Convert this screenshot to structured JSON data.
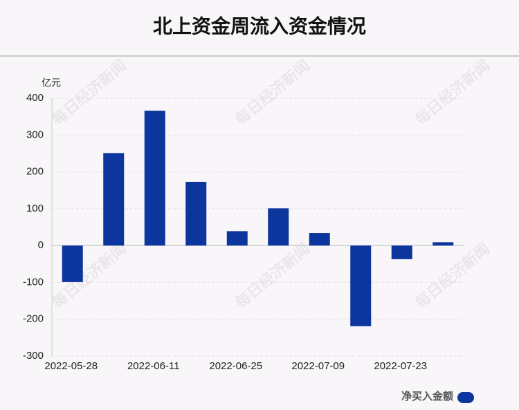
{
  "chart_data": {
    "type": "bar",
    "title": "北上资金周流入资金情况",
    "y_unit": "亿元",
    "watermark": "每日经济新闻",
    "categories": [
      "2022-05-28",
      null,
      "2022-06-11",
      null,
      "2022-06-25",
      null,
      "2022-07-09",
      null,
      "2022-07-23",
      null
    ],
    "series": [
      {
        "name": "净买入金额",
        "color": "#0c359e",
        "values": [
          -99,
          251,
          366,
          173,
          39,
          101,
          34,
          -219,
          -37,
          9
        ]
      }
    ],
    "ylim": [
      -300,
      400
    ],
    "yticks": [
      -300,
      -200,
      -100,
      0,
      100,
      200,
      300,
      400
    ],
    "grid": true,
    "legend": "bottom-right"
  }
}
